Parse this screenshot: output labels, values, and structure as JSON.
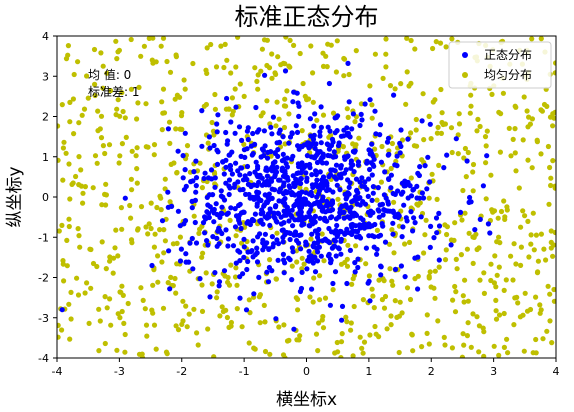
{
  "chart_data": {
    "type": "scatter",
    "title": "标准正态分布",
    "xlabel": "横坐标x",
    "ylabel": "纵坐标y",
    "xlim": [
      -4,
      4
    ],
    "ylim": [
      -4,
      4
    ],
    "xticks": [
      "-4",
      "-3",
      "-2",
      "-1",
      "0",
      "1",
      "2",
      "3",
      "4"
    ],
    "yticks": [
      "-4",
      "-3",
      "-2",
      "-1",
      "0",
      "1",
      "2",
      "3",
      "4"
    ],
    "grid": false,
    "legend_position": "upper right",
    "annotations": [
      "均 值: 0",
      "标准差: 1"
    ],
    "series": [
      {
        "name": "正态分布",
        "color": "#0000ff",
        "distribution": "normal",
        "mean": 0,
        "std": 1,
        "count": 1000
      },
      {
        "name": "均匀分布",
        "color": "#bfbf00",
        "distribution": "uniform",
        "range": [
          -4,
          4
        ],
        "count": 1000
      }
    ]
  }
}
